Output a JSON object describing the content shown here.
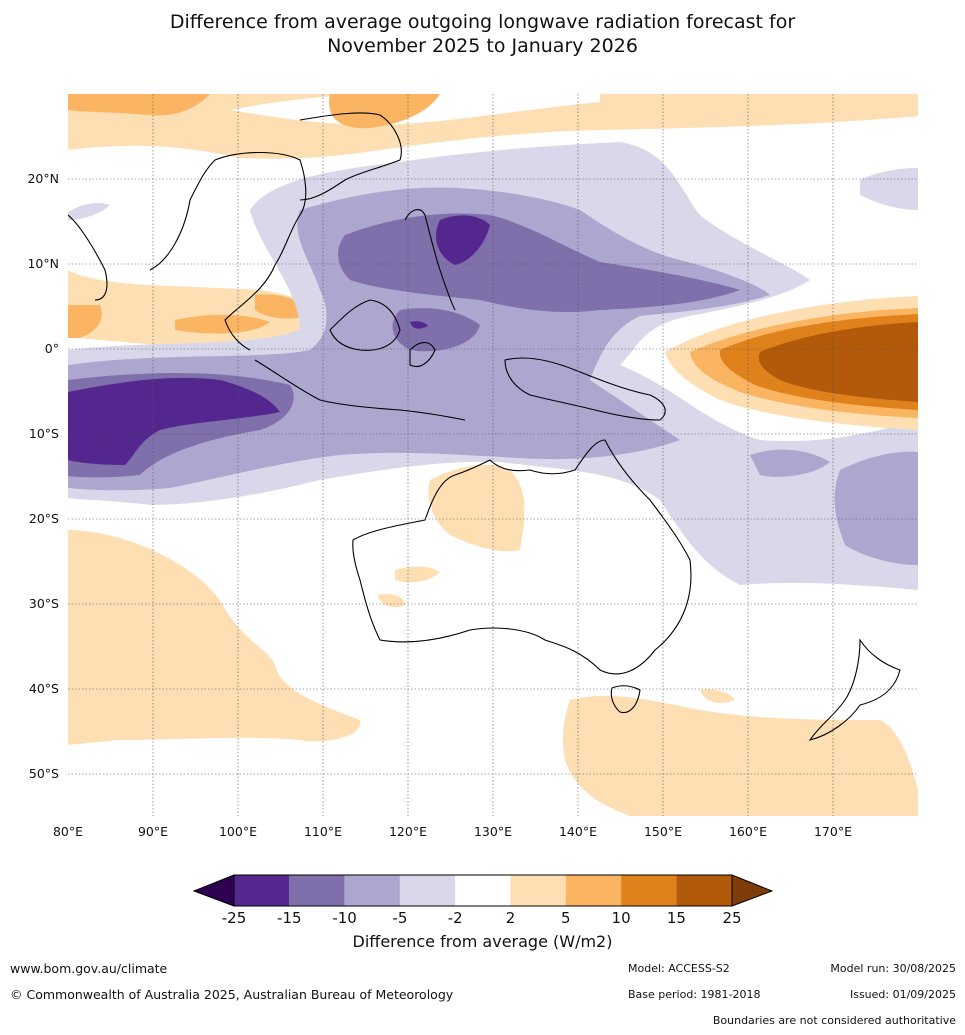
{
  "title": {
    "line1": "Difference from average outgoing longwave radiation forecast for",
    "line2": "November 2025 to January 2026"
  },
  "map": {
    "lon_ticks": [
      "80°E",
      "90°E",
      "100°E",
      "110°E",
      "120°E",
      "130°E",
      "140°E",
      "150°E",
      "160°E",
      "170°E"
    ],
    "lat_ticks": [
      "20°N",
      "10°N",
      "0°",
      "10°S",
      "20°S",
      "30°S",
      "40°S",
      "50°S"
    ]
  },
  "colorbar": {
    "levels": [
      "-25",
      "-15",
      "-10",
      "-5",
      "-2",
      "2",
      "5",
      "10",
      "15",
      "25"
    ],
    "colors": [
      "#54278f",
      "#7f6faa",
      "#ada7d0",
      "#d9d8ea",
      "#ffffff",
      "#fddfb3",
      "#fbb562",
      "#e0821c",
      "#b3590a"
    ],
    "under_color": "#2d0050",
    "over_color": "#7f3b08",
    "title": "Difference from average (W/m2)"
  },
  "footer": {
    "website": "www.bom.gov.au/climate",
    "copyright": "© Commonwealth of Australia 2025, Australian Bureau of Meteorology",
    "model": "Model: ACCESS-S2",
    "base_period": "Base period: 1981-2018",
    "model_run": "Model run: 30/08/2025",
    "issued": "Issued: 01/09/2025",
    "disclaimer": "Boundaries are not considered authoritative"
  }
}
